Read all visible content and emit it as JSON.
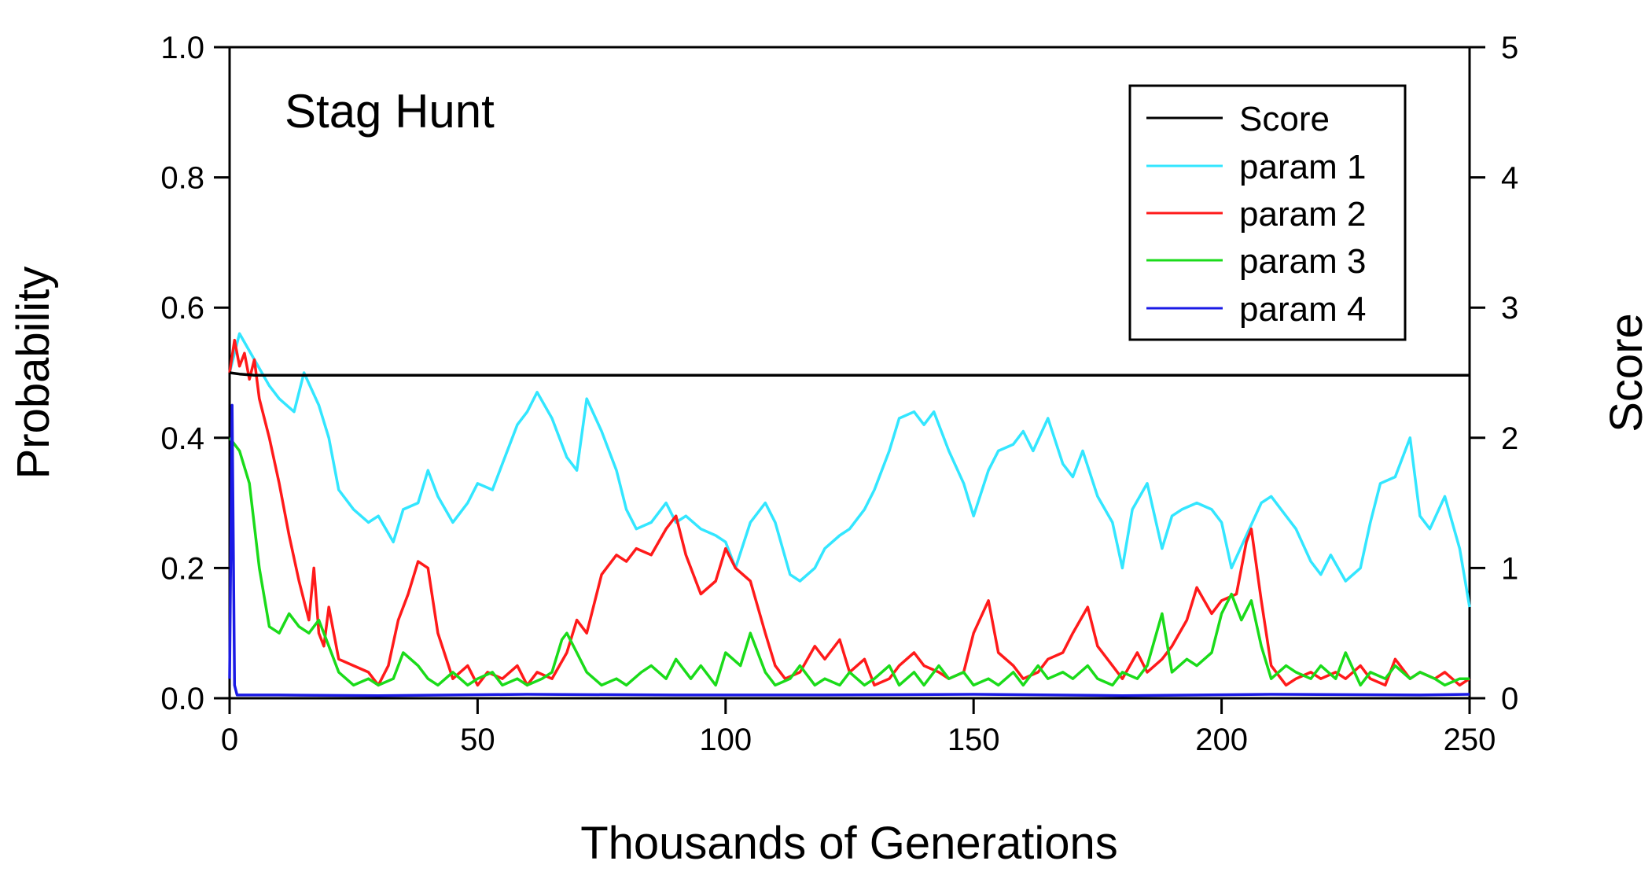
{
  "chart_data": {
    "type": "line",
    "annotation": "Stag Hunt",
    "xlabel": "Thousands of Generations",
    "ylabel_left": "Probability",
    "ylabel_right": "Score",
    "xlim": [
      0,
      250
    ],
    "ylim_left": [
      0,
      1.0
    ],
    "ylim_right": [
      0,
      5
    ],
    "x_ticks": [
      "0",
      "50",
      "100",
      "150",
      "200",
      "250"
    ],
    "x_tick_values": [
      0,
      50,
      100,
      150,
      200,
      250
    ],
    "y_left_ticks": [
      "0.0",
      "0.2",
      "0.4",
      "0.6",
      "0.8",
      "1.0"
    ],
    "y_left_tick_values": [
      0,
      0.2,
      0.4,
      0.6,
      0.8,
      1.0
    ],
    "y_right_ticks": [
      "0",
      "1",
      "2",
      "3",
      "4",
      "5"
    ],
    "y_right_tick_values": [
      0,
      1,
      2,
      3,
      4,
      5
    ],
    "grid": false,
    "legend_position": "top-right",
    "series": [
      {
        "name": "Score",
        "axis": "right",
        "color": "#000000",
        "x": [
          0,
          2,
          5,
          10,
          20,
          40,
          60,
          80,
          100,
          120,
          140,
          160,
          180,
          200,
          220,
          240,
          250
        ],
        "values": [
          2.5,
          2.49,
          2.48,
          2.48,
          2.48,
          2.48,
          2.48,
          2.48,
          2.48,
          2.48,
          2.48,
          2.48,
          2.48,
          2.48,
          2.48,
          2.48,
          2.48
        ]
      },
      {
        "name": "param 1",
        "axis": "left",
        "color": "#33e6ff",
        "x": [
          0,
          2,
          5,
          8,
          10,
          13,
          15,
          18,
          20,
          22,
          25,
          28,
          30,
          33,
          35,
          38,
          40,
          42,
          45,
          48,
          50,
          53,
          55,
          58,
          60,
          62,
          65,
          68,
          70,
          72,
          75,
          78,
          80,
          82,
          85,
          88,
          90,
          92,
          95,
          98,
          100,
          102,
          105,
          108,
          110,
          113,
          115,
          118,
          120,
          123,
          125,
          128,
          130,
          133,
          135,
          138,
          140,
          142,
          145,
          148,
          150,
          153,
          155,
          158,
          160,
          162,
          165,
          168,
          170,
          172,
          175,
          178,
          180,
          182,
          185,
          188,
          190,
          192,
          195,
          198,
          200,
          202,
          205,
          208,
          210,
          212,
          215,
          218,
          220,
          222,
          225,
          228,
          230,
          232,
          235,
          238,
          240,
          242,
          245,
          248,
          250
        ],
        "values": [
          0.5,
          0.56,
          0.52,
          0.48,
          0.46,
          0.44,
          0.5,
          0.45,
          0.4,
          0.32,
          0.29,
          0.27,
          0.28,
          0.24,
          0.29,
          0.3,
          0.35,
          0.31,
          0.27,
          0.3,
          0.33,
          0.32,
          0.36,
          0.42,
          0.44,
          0.47,
          0.43,
          0.37,
          0.35,
          0.46,
          0.41,
          0.35,
          0.29,
          0.26,
          0.27,
          0.3,
          0.27,
          0.28,
          0.26,
          0.25,
          0.24,
          0.2,
          0.27,
          0.3,
          0.27,
          0.19,
          0.18,
          0.2,
          0.23,
          0.25,
          0.26,
          0.29,
          0.32,
          0.38,
          0.43,
          0.44,
          0.42,
          0.44,
          0.38,
          0.33,
          0.28,
          0.35,
          0.38,
          0.39,
          0.41,
          0.38,
          0.43,
          0.36,
          0.34,
          0.38,
          0.31,
          0.27,
          0.2,
          0.29,
          0.33,
          0.23,
          0.28,
          0.29,
          0.3,
          0.29,
          0.27,
          0.2,
          0.25,
          0.3,
          0.31,
          0.29,
          0.26,
          0.21,
          0.19,
          0.22,
          0.18,
          0.2,
          0.27,
          0.33,
          0.34,
          0.4,
          0.28,
          0.26,
          0.31,
          0.23,
          0.14
        ]
      },
      {
        "name": "param 2",
        "axis": "left",
        "color": "#ff1a1a",
        "x": [
          0,
          1,
          2,
          3,
          4,
          5,
          6,
          8,
          10,
          12,
          14,
          16,
          17,
          18,
          19,
          20,
          22,
          25,
          28,
          30,
          32,
          34,
          36,
          38,
          40,
          42,
          45,
          48,
          50,
          52,
          55,
          58,
          60,
          62,
          65,
          68,
          70,
          72,
          75,
          78,
          80,
          82,
          85,
          88,
          90,
          92,
          95,
          98,
          100,
          102,
          105,
          108,
          110,
          112,
          115,
          118,
          120,
          123,
          125,
          128,
          130,
          133,
          135,
          138,
          140,
          143,
          145,
          148,
          150,
          153,
          155,
          158,
          160,
          163,
          165,
          168,
          170,
          173,
          175,
          178,
          180,
          183,
          185,
          188,
          190,
          193,
          195,
          198,
          200,
          203,
          205,
          206,
          208,
          210,
          213,
          215,
          218,
          220,
          223,
          225,
          228,
          230,
          233,
          235,
          238,
          240,
          243,
          245,
          248,
          250
        ],
        "values": [
          0.5,
          0.55,
          0.51,
          0.53,
          0.49,
          0.52,
          0.46,
          0.4,
          0.33,
          0.25,
          0.18,
          0.12,
          0.2,
          0.1,
          0.08,
          0.14,
          0.06,
          0.05,
          0.04,
          0.02,
          0.05,
          0.12,
          0.16,
          0.21,
          0.2,
          0.1,
          0.03,
          0.05,
          0.02,
          0.04,
          0.03,
          0.05,
          0.02,
          0.04,
          0.03,
          0.07,
          0.12,
          0.1,
          0.19,
          0.22,
          0.21,
          0.23,
          0.22,
          0.26,
          0.28,
          0.22,
          0.16,
          0.18,
          0.23,
          0.2,
          0.18,
          0.1,
          0.05,
          0.03,
          0.04,
          0.08,
          0.06,
          0.09,
          0.04,
          0.06,
          0.02,
          0.03,
          0.05,
          0.07,
          0.05,
          0.04,
          0.03,
          0.04,
          0.1,
          0.15,
          0.07,
          0.05,
          0.03,
          0.04,
          0.06,
          0.07,
          0.1,
          0.14,
          0.08,
          0.05,
          0.03,
          0.07,
          0.04,
          0.06,
          0.08,
          0.12,
          0.17,
          0.13,
          0.15,
          0.16,
          0.24,
          0.26,
          0.15,
          0.05,
          0.02,
          0.03,
          0.04,
          0.03,
          0.04,
          0.03,
          0.05,
          0.03,
          0.02,
          0.06,
          0.03,
          0.04,
          0.03,
          0.04,
          0.02,
          0.03
        ]
      },
      {
        "name": "param 3",
        "axis": "left",
        "color": "#1adb1a",
        "x": [
          0,
          2,
          4,
          6,
          8,
          10,
          12,
          14,
          16,
          18,
          20,
          22,
          25,
          28,
          30,
          33,
          35,
          38,
          40,
          42,
          45,
          48,
          50,
          53,
          55,
          58,
          60,
          63,
          65,
          67,
          68,
          70,
          72,
          75,
          78,
          80,
          83,
          85,
          88,
          90,
          93,
          95,
          98,
          100,
          103,
          105,
          108,
          110,
          113,
          115,
          118,
          120,
          123,
          125,
          128,
          130,
          133,
          135,
          138,
          140,
          143,
          145,
          148,
          150,
          153,
          155,
          158,
          160,
          163,
          165,
          168,
          170,
          173,
          175,
          178,
          180,
          183,
          185,
          188,
          190,
          193,
          195,
          198,
          200,
          202,
          204,
          206,
          208,
          210,
          213,
          215,
          218,
          220,
          223,
          225,
          228,
          230,
          233,
          235,
          238,
          240,
          243,
          245,
          248,
          250
        ],
        "values": [
          0.4,
          0.38,
          0.33,
          0.2,
          0.11,
          0.1,
          0.13,
          0.11,
          0.1,
          0.12,
          0.08,
          0.04,
          0.02,
          0.03,
          0.02,
          0.03,
          0.07,
          0.05,
          0.03,
          0.02,
          0.04,
          0.02,
          0.03,
          0.04,
          0.02,
          0.03,
          0.02,
          0.03,
          0.04,
          0.09,
          0.1,
          0.07,
          0.04,
          0.02,
          0.03,
          0.02,
          0.04,
          0.05,
          0.03,
          0.06,
          0.03,
          0.05,
          0.02,
          0.07,
          0.05,
          0.1,
          0.04,
          0.02,
          0.03,
          0.05,
          0.02,
          0.03,
          0.02,
          0.04,
          0.02,
          0.03,
          0.05,
          0.02,
          0.04,
          0.02,
          0.05,
          0.03,
          0.04,
          0.02,
          0.03,
          0.02,
          0.04,
          0.02,
          0.05,
          0.03,
          0.04,
          0.03,
          0.05,
          0.03,
          0.02,
          0.04,
          0.03,
          0.05,
          0.13,
          0.04,
          0.06,
          0.05,
          0.07,
          0.13,
          0.16,
          0.12,
          0.15,
          0.08,
          0.03,
          0.05,
          0.04,
          0.03,
          0.05,
          0.03,
          0.07,
          0.02,
          0.04,
          0.03,
          0.05,
          0.03,
          0.04,
          0.03,
          0.02,
          0.03,
          0.03
        ]
      },
      {
        "name": "param 4",
        "axis": "left",
        "color": "#1a1ae6",
        "x": [
          0,
          0.5,
          1,
          1.5,
          3,
          10,
          30,
          60,
          90,
          120,
          150,
          180,
          210,
          240,
          250
        ],
        "values": [
          0.03,
          0.45,
          0.02,
          0.005,
          0.005,
          0.005,
          0.004,
          0.006,
          0.005,
          0.005,
          0.006,
          0.004,
          0.006,
          0.005,
          0.006
        ]
      }
    ]
  }
}
